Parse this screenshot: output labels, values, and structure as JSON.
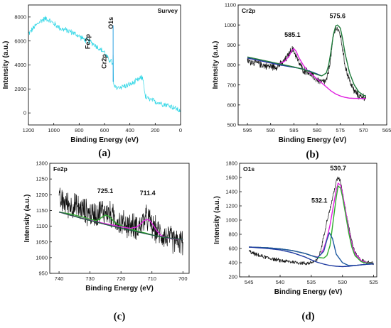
{
  "chart_data": [
    {
      "type": "line",
      "panel_label": "(a)",
      "title": "Survey",
      "xlabel": "Binding Energy (eV)",
      "ylabel": "Intensity (a.u.)",
      "xlim": [
        1200,
        0
      ],
      "ylim": [
        -1000,
        9000
      ],
      "xticks": [
        1200,
        1000,
        800,
        600,
        400,
        200,
        0
      ],
      "yticks": [
        0,
        2000,
        4000,
        6000,
        8000
      ],
      "annotations": [
        {
          "text": "Fe2p",
          "x": 715,
          "y": 5950,
          "color": "#2fc82f",
          "rotate": -90
        },
        {
          "text": "Cr2p",
          "x": 585,
          "y": 4300,
          "color": "#1a2d8f",
          "rotate": -90
        },
        {
          "text": "O1s",
          "x": 532,
          "y": 7500,
          "color": "#e02020",
          "rotate": -90
        }
      ],
      "series": [
        {
          "color": "#33d7e6",
          "noise": 260,
          "x": [
            1200,
            1150,
            1100,
            1060,
            1020,
            980,
            940,
            900,
            850,
            800,
            750,
            715,
            680,
            640,
            600,
            585,
            570,
            545,
            533,
            532,
            531,
            528,
            520,
            500,
            460,
            420,
            380,
            350,
            320,
            300,
            290,
            282,
            270,
            240,
            200,
            150,
            100,
            50,
            0
          ],
          "y": [
            6600,
            7200,
            7700,
            7900,
            7600,
            7300,
            7000,
            6900,
            6700,
            6400,
            6050,
            5950,
            5700,
            5350,
            5050,
            4700,
            4500,
            4300,
            3900,
            7400,
            2700,
            2300,
            2150,
            2100,
            2200,
            2300,
            2450,
            2650,
            2850,
            2950,
            2500,
            1500,
            1250,
            1100,
            950,
            800,
            650,
            450,
            150
          ]
        }
      ]
    },
    {
      "type": "line",
      "panel_label": "(b)",
      "title": "Cr2p",
      "xlabel": "Binding Energy (eV)",
      "ylabel": "Intensity (a.u.)",
      "xlim": [
        597,
        565
      ],
      "ylim": [
        500,
        1100
      ],
      "xticks": [
        595,
        590,
        585,
        580,
        575,
        570,
        565
      ],
      "yticks": [
        500,
        600,
        700,
        800,
        900,
        1000,
        1100
      ],
      "annotations": [
        {
          "text": "585.1",
          "x": 585.3,
          "y": 940,
          "color": "#111111",
          "rotate": 0
        },
        {
          "text": "575.6",
          "x": 575.6,
          "y": 1035,
          "color": "#111111",
          "rotate": 0
        }
      ],
      "series": [
        {
          "name": "",
          "color": "#111111",
          "noise": 20,
          "x": [
            595,
            593,
            591,
            589,
            588,
            587,
            586,
            585.5,
            585,
            584.5,
            584,
            583,
            582,
            581,
            580,
            579,
            578,
            577.5,
            577,
            576.5,
            576,
            575.6,
            575,
            574.5,
            574,
            573,
            572,
            571,
            570,
            569.5
          ],
          "y": [
            820,
            810,
            795,
            790,
            800,
            820,
            855,
            880,
            870,
            845,
            815,
            775,
            765,
            745,
            725,
            715,
            720,
            770,
            850,
            940,
            985,
            980,
            950,
            880,
            800,
            720,
            670,
            645,
            640,
            640
          ]
        },
        {
          "name": "",
          "color": "#e020e0",
          "noise": 0,
          "x": [
            595,
            593,
            591,
            589,
            588,
            587,
            586,
            585.5,
            585,
            584.5,
            584,
            583,
            582,
            581,
            580,
            579,
            578,
            577,
            576,
            575,
            574,
            573,
            572,
            570,
            569.5
          ],
          "y": [
            835,
            825,
            815,
            805,
            808,
            818,
            845,
            870,
            882,
            868,
            840,
            800,
            770,
            750,
            730,
            710,
            690,
            670,
            655,
            645,
            638,
            634,
            633,
            632,
            632
          ]
        },
        {
          "name": "",
          "color": "#1a3aa0",
          "noise": 0,
          "x": [
            595,
            593,
            591,
            589,
            588,
            587,
            586,
            585,
            584,
            583,
            582,
            581,
            580,
            579
          ],
          "y": [
            835,
            825,
            815,
            805,
            800,
            796,
            792,
            788,
            784,
            779,
            772,
            764,
            755,
            745
          ]
        },
        {
          "name": "",
          "color": "#1e7a3a",
          "noise": 0,
          "x": [
            595,
            593,
            591,
            589,
            587,
            585,
            583,
            581,
            580,
            579,
            578,
            577.5,
            577,
            576.5,
            576,
            575.6,
            575,
            574.5,
            574,
            573,
            572,
            571,
            570,
            569.5
          ],
          "y": [
            840,
            830,
            820,
            810,
            800,
            790,
            778,
            762,
            752,
            745,
            760,
            800,
            870,
            950,
            995,
            1000,
            985,
            930,
            860,
            760,
            700,
            665,
            648,
            645
          ]
        }
      ]
    },
    {
      "type": "line",
      "panel_label": "(c)",
      "title": "Fe2p",
      "xlabel": "Binding Energy (eV)",
      "ylabel": "Intensity (a.u.)",
      "xlim": [
        743,
        698
      ],
      "ylim": [
        950,
        1300
      ],
      "xticks": [
        740,
        730,
        720,
        710,
        700
      ],
      "yticks": [
        950,
        1000,
        1050,
        1100,
        1150,
        1200,
        1250,
        1300
      ],
      "annotations": [
        {
          "text": "725.1",
          "x": 725.1,
          "y": 1205,
          "color": "#111111",
          "rotate": 0
        },
        {
          "text": "711.4",
          "x": 711.4,
          "y": 1198,
          "color": "#111111",
          "rotate": 0
        }
      ],
      "series": [
        {
          "name": "",
          "color": "#111111",
          "noise": 45,
          "x": [
            740,
            738,
            736,
            734,
            732,
            730,
            728,
            726,
            724,
            722,
            720,
            718,
            716,
            714,
            712,
            711,
            710,
            708,
            706,
            704,
            702,
            700
          ],
          "y": [
            1180,
            1175,
            1165,
            1160,
            1150,
            1140,
            1140,
            1150,
            1140,
            1125,
            1110,
            1105,
            1100,
            1100,
            1125,
            1120,
            1100,
            1080,
            1070,
            1060,
            1050,
            1050
          ]
        },
        {
          "name": "",
          "color": "#2fae2f",
          "noise": 0,
          "x": [
            740,
            736,
            732,
            730,
            728,
            727,
            726,
            725,
            724,
            723,
            722,
            720,
            718,
            716,
            714,
            712,
            710,
            708,
            706,
            704,
            702,
            700
          ],
          "y": [
            1145,
            1138,
            1128,
            1122,
            1118,
            1122,
            1130,
            1135,
            1132,
            1123,
            1112,
            1102,
            1094,
            1088,
            1082,
            1078,
            1072,
            1068,
            1064,
            1061,
            1059,
            1058
          ]
        },
        {
          "name": "",
          "color": "#e020e0",
          "noise": 0,
          "x": [
            740,
            736,
            732,
            728,
            724,
            720,
            717,
            715,
            713.5,
            712.5,
            711.4,
            710.5,
            709.5,
            708.5,
            707,
            705,
            702,
            700
          ],
          "y": [
            1145,
            1134,
            1124,
            1114,
            1106,
            1098,
            1093,
            1097,
            1108,
            1118,
            1122,
            1116,
            1102,
            1086,
            1070,
            1062,
            1059,
            1058
          ]
        },
        {
          "name": "",
          "color": "#1e5a40",
          "noise": 0,
          "x": [
            740,
            736,
            732,
            728,
            724,
            720,
            716,
            712,
            708,
            704,
            700
          ],
          "y": [
            1145,
            1134,
            1123,
            1113,
            1103,
            1094,
            1085,
            1076,
            1068,
            1062,
            1058
          ]
        }
      ]
    },
    {
      "type": "line",
      "panel_label": "(d)",
      "title": "O1s",
      "xlabel": "Binding Energy (eV)",
      "ylabel": "Intensity (a.u.)",
      "xlim": [
        546.5,
        524.5
      ],
      "ylim": [
        200,
        1800
      ],
      "xticks": [
        545,
        540,
        535,
        530,
        525
      ],
      "yticks": [
        200,
        400,
        600,
        800,
        1000,
        1200,
        1400,
        1600,
        1800
      ],
      "annotations": [
        {
          "text": "530.7",
          "x": 530.7,
          "y": 1700,
          "color": "#111111",
          "rotate": 0
        },
        {
          "text": "532.1",
          "x": 533.7,
          "y": 1245,
          "color": "#111111",
          "rotate": 0
        }
      ],
      "series": [
        {
          "name": "",
          "color": "#111111",
          "noise": 30,
          "x": [
            545,
            544,
            543,
            542,
            541,
            540,
            539,
            538,
            537,
            536,
            535,
            534,
            533.5,
            533,
            532.5,
            532,
            531.5,
            531,
            530.7,
            530.3,
            530,
            529.5,
            529,
            528.5,
            528,
            527,
            526,
            525
          ],
          "y": [
            560,
            520,
            490,
            470,
            450,
            430,
            420,
            410,
            400,
            390,
            400,
            440,
            560,
            780,
            990,
            1150,
            1350,
            1540,
            1600,
            1550,
            1400,
            1150,
            920,
            700,
            540,
            430,
            400,
            390
          ]
        },
        {
          "name": "",
          "color": "#e020e0",
          "noise": 0,
          "x": [
            545,
            542,
            540,
            538,
            536,
            535,
            534,
            533.5,
            533,
            532.5,
            532,
            531.5,
            531,
            530.7,
            530.3,
            530,
            529.5,
            529,
            528.5,
            528,
            527,
            526,
            525
          ],
          "y": [
            620,
            610,
            595,
            570,
            530,
            500,
            480,
            510,
            600,
            740,
            930,
            1180,
            1420,
            1520,
            1490,
            1380,
            1130,
            870,
            660,
            530,
            430,
            395,
            385
          ]
        },
        {
          "name": "",
          "color": "#2fae2f",
          "noise": 0,
          "x": [
            545,
            542,
            540,
            538,
            536,
            535,
            534,
            533,
            532.5,
            532,
            531.5,
            531,
            530.7,
            530.3,
            530,
            529.5,
            529,
            528.5,
            528,
            527,
            526,
            525
          ],
          "y": [
            620,
            610,
            595,
            570,
            530,
            500,
            475,
            465,
            500,
            640,
            980,
            1320,
            1480,
            1450,
            1330,
            1080,
            820,
            620,
            500,
            415,
            390,
            385
          ]
        },
        {
          "name": "",
          "color": "#1e5aa0",
          "noise": 0,
          "x": [
            545,
            542,
            540,
            538,
            536,
            535,
            534,
            533,
            532.5,
            532.1,
            531.6,
            531,
            530,
            529,
            528,
            527,
            526,
            525
          ],
          "y": [
            620,
            610,
            595,
            570,
            530,
            500,
            470,
            560,
            720,
            820,
            740,
            520,
            400,
            360,
            360,
            370,
            378,
            383
          ]
        },
        {
          "name": "",
          "color": "#1e3aa0",
          "noise": 0,
          "x": [
            545,
            542,
            540,
            538,
            536,
            535,
            534,
            533,
            532,
            531,
            530,
            529,
            528,
            527,
            526,
            525
          ],
          "y": [
            620,
            600,
            580,
            540,
            480,
            440,
            405,
            380,
            360,
            350,
            345,
            350,
            360,
            370,
            378,
            383
          ]
        }
      ]
    }
  ]
}
